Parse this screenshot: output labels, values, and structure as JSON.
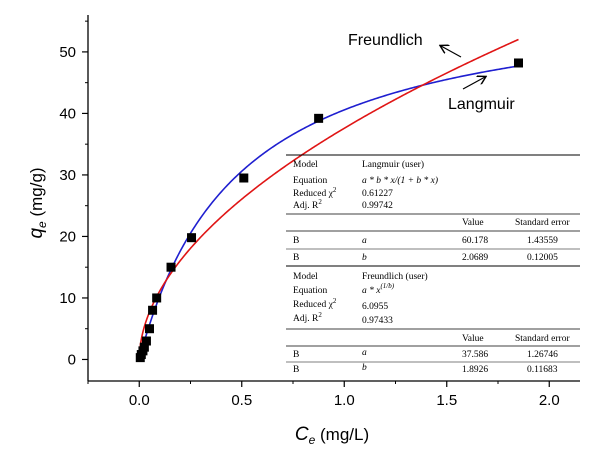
{
  "chart_data": {
    "type": "scatter",
    "xlabel_main": "C",
    "xlabel_sub": "e",
    "xlabel_unit": " (mg/L)",
    "ylabel_main": "q",
    "ylabel_sub": "e",
    "ylabel_unit": " (mg/g)",
    "xlim": [
      -0.25,
      2.15
    ],
    "ylim": [
      -3.5,
      56
    ],
    "x_ticks": [
      0.0,
      0.5,
      1.0,
      1.5,
      2.0
    ],
    "x_tick_labels": [
      "0.0",
      "0.5",
      "1.0",
      "1.5",
      "2.0"
    ],
    "y_ticks": [
      0,
      10,
      20,
      30,
      40,
      50
    ],
    "y_tick_labels": [
      "0",
      "10",
      "20",
      "30",
      "40",
      "50"
    ],
    "grid": false,
    "points": {
      "x": [
        0.005,
        0.01,
        0.018,
        0.025,
        0.035,
        0.05,
        0.065,
        0.085,
        0.155,
        0.255,
        0.51,
        0.875,
        1.85
      ],
      "y": [
        0.3,
        0.8,
        1.4,
        2.0,
        3.0,
        5.0,
        8.0,
        10.0,
        15.0,
        19.8,
        29.5,
        39.2,
        48.2
      ],
      "color": "#000000"
    },
    "series": [
      {
        "name": "Langmuir",
        "model": "langmuir",
        "a": 60.178,
        "b": 2.0689,
        "color": "#1f1fd0"
      },
      {
        "name": "Freundlich",
        "model": "freundlich",
        "a": 37.586,
        "b": 1.8926,
        "color": "#e01515"
      }
    ],
    "annotations": {
      "freundlich": "Freundlich",
      "langmuir": "Langmuir"
    }
  },
  "fit_table": {
    "langmuir": {
      "model_label": "Model",
      "model_value": "Langmuir (user)",
      "equation_label": "Equation",
      "equation_value": "a * b * x/(1 + b * x)",
      "chi_label": "Reduced χ",
      "chi_sup": "2",
      "chi_value": "0.61227",
      "adjr_label": "Adj. R",
      "adjr_sup": "2",
      "adjr_value": "0.99742",
      "header_value": "Value",
      "header_error": "Standard error",
      "rows": [
        {
          "group": "B",
          "param": "a",
          "value": "60.178",
          "error": "1.43559"
        },
        {
          "group": "B",
          "param": "b",
          "value": "2.0689",
          "error": "0.12005"
        }
      ]
    },
    "freundlich": {
      "model_label": "Model",
      "model_value": "Freundlich (user)",
      "equation_label": "Equation",
      "equation_value": "a * x",
      "equation_sup": "(1/b)",
      "chi_label": "Reduced χ",
      "chi_sup": "2",
      "chi_value": "6.0955",
      "adjr_label": "Adj. R",
      "adjr_sup": "2",
      "adjr_value": "0.97433",
      "header_value": "Value",
      "header_error": "Standard error",
      "rows": [
        {
          "group": "B",
          "param": "a",
          "value": "37.586",
          "error": "1.26746"
        },
        {
          "group": "B",
          "param": "b",
          "value": "1.8926",
          "error": "0.11683"
        }
      ]
    }
  }
}
